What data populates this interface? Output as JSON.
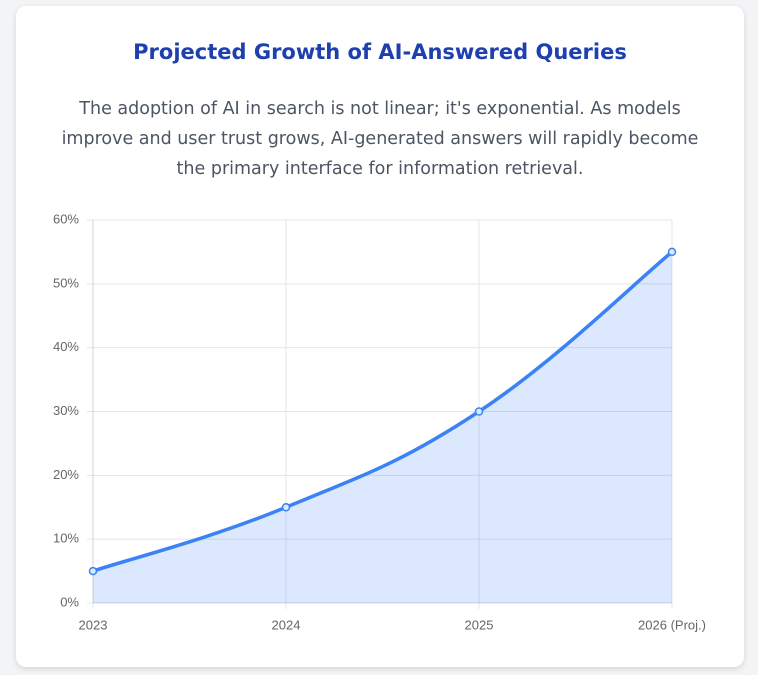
{
  "chart_data": {
    "type": "line",
    "title": "Projected Growth of AI-Answered Queries",
    "subtitle": "The adoption of AI in search is not linear; it's exponential. As models improve and user trust grows, AI-generated answers will rapidly become the primary interface for information retrieval.",
    "categories": [
      "2023",
      "2024",
      "2025",
      "2026 (Proj.)"
    ],
    "values": [
      5,
      15,
      30,
      55
    ],
    "color": "#3b82f6",
    "fill": true,
    "grid": true,
    "ylim": [
      0,
      60
    ],
    "yticks": [
      {
        "value": 0,
        "label": "0%"
      },
      {
        "value": 10,
        "label": "10%"
      },
      {
        "value": 20,
        "label": "20%"
      },
      {
        "value": 30,
        "label": "30%"
      },
      {
        "value": 40,
        "label": "40%"
      },
      {
        "value": 50,
        "label": "50%"
      },
      {
        "value": 60,
        "label": "60%"
      }
    ]
  }
}
